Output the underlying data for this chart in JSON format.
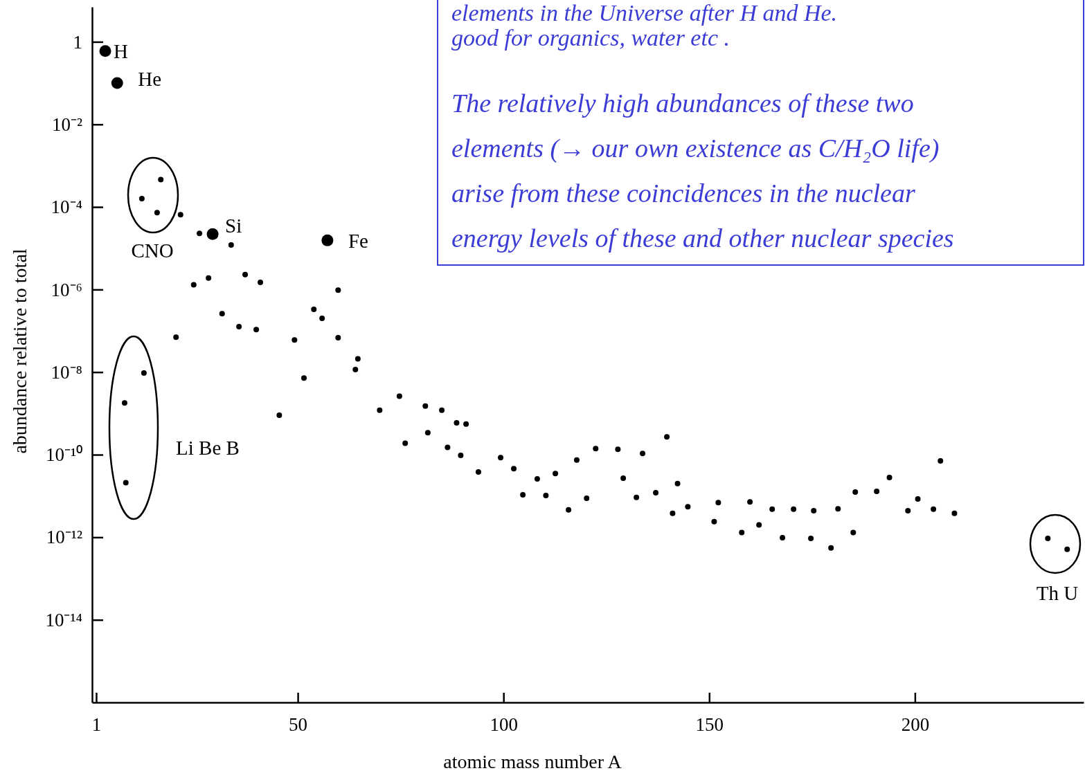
{
  "chart_data": {
    "type": "scatter",
    "xlabel": "atomic mass number A",
    "ylabel": "abundance relative to total",
    "log": "y",
    "xlim": [
      0,
      241
    ],
    "ylim": [
      1e-16,
      7
    ],
    "xticks": [
      1,
      50,
      100,
      150,
      200
    ],
    "yticks": [
      {
        "value": 1,
        "label": "1"
      },
      {
        "value": 0.01,
        "label": "10⁻²"
      },
      {
        "value": 0.0001,
        "label": "10⁻⁴"
      },
      {
        "value": 1e-06,
        "label": "10⁻⁶"
      },
      {
        "value": 1e-08,
        "label": "10⁻⁸"
      },
      {
        "value": 1e-10,
        "label": "10⁻¹⁰"
      },
      {
        "value": 1e-12,
        "label": "10⁻¹²"
      },
      {
        "value": 1e-14,
        "label": "10⁻¹⁴"
      }
    ],
    "grid": false,
    "marker": "circle",
    "series": [
      {
        "color": "#000000",
        "x": [
          3.2,
          6.1,
          29.3,
          57.2
        ],
        "values": [
          0.6,
          0.1,
          2.2e-05,
          1.55e-05
        ]
      },
      {
        "color": "#000000",
        "x": [
          12.1,
          16.7,
          15.8,
          21.5,
          26.1,
          33.8,
          24.7,
          28.3,
          37.2,
          40.9,
          31.6,
          35.7,
          39.9,
          20.4,
          49.2,
          53.9,
          55.9,
          59.8,
          59.8,
          51.5,
          64.6,
          64,
          7.9,
          12.6,
          8.2,
          45.5,
          69.9,
          74.7,
          76.1,
          81,
          85,
          81.6,
          88.6,
          90.9,
          86.4,
          89.6,
          93.9,
          99.3,
          102.5,
          104.7,
          108.2,
          110.3,
          112.6,
          115.8,
          117.8,
          120.2,
          122.4,
          127.8,
          129.1,
          133.8,
          132.3,
          137,
          139.7,
          142.3,
          141.1,
          144.8,
          151.2,
          152.2,
          157.9,
          159.9,
          162.1,
          165.3,
          167.8,
          170.5,
          174.7,
          175.4,
          179.6,
          181.3,
          185,
          185.5,
          190.7,
          193.8,
          198.3,
          200.7,
          204.5,
          206.2,
          209.6,
          232.3,
          237
        ],
        "values": [
          0.00016,
          0.00046,
          7.3e-05,
          6.5e-05,
          2.3e-05,
          1.2e-05,
          1.3e-06,
          1.9e-06,
          2.3e-06,
          1.5e-06,
          2.6e-07,
          1.26e-07,
          1.07e-07,
          7e-08,
          6e-08,
          3.3e-07,
          2e-07,
          9.7e-07,
          6.8e-08,
          7.2e-09,
          2.1e-08,
          1.15e-08,
          1.8e-09,
          9.5e-09,
          2.1e-11,
          9e-10,
          1.2e-09,
          2.6e-09,
          1.9e-10,
          1.5e-09,
          1.2e-09,
          3.4e-10,
          5.9e-10,
          5.5e-10,
          1.5e-10,
          9.6e-11,
          3.8e-11,
          8.5e-11,
          4.6e-11,
          1.07e-11,
          2.6e-11,
          1.03e-11,
          3.5e-11,
          4.6e-12,
          7.4e-11,
          8.8e-12,
          1.4e-10,
          1.35e-10,
          2.7e-11,
          1.07e-10,
          9.2e-12,
          1.2e-11,
          2.7e-10,
          2e-11,
          3.8e-12,
          5.5e-12,
          2.4e-12,
          6.9e-12,
          1.3e-12,
          7.2e-12,
          2e-12,
          4.8e-12,
          9.8e-13,
          4.8e-12,
          9.4e-13,
          4.4e-12,
          5.5e-13,
          4.9e-12,
          1.3e-12,
          1.25e-11,
          1.3e-11,
          2.8e-11,
          4.4e-12,
          8.5e-12,
          4.8e-12,
          7.1e-11,
          3.8e-12,
          9.4e-13,
          5.1e-13
        ]
      }
    ],
    "annotations": [
      {
        "text": "H",
        "x": 3.2,
        "y": 0.6
      },
      {
        "text": "He",
        "x": 6.1,
        "y": 0.1
      },
      {
        "text": "Si",
        "x": 29.3,
        "y": 2.2e-05
      },
      {
        "text": "Fe",
        "x": 57.2,
        "y": 1.55e-05
      },
      "CNO",
      "Li  Be  B",
      "Th U",
      "elements in the Universe after H and He.",
      "good for organics, water etc .",
      "The relatively high abundances of these two",
      "elements (→ our own existence as C/H₂O life)",
      "arise from these coincidences in the nuclear",
      "energy levels of these and other nuclear species"
    ]
  }
}
